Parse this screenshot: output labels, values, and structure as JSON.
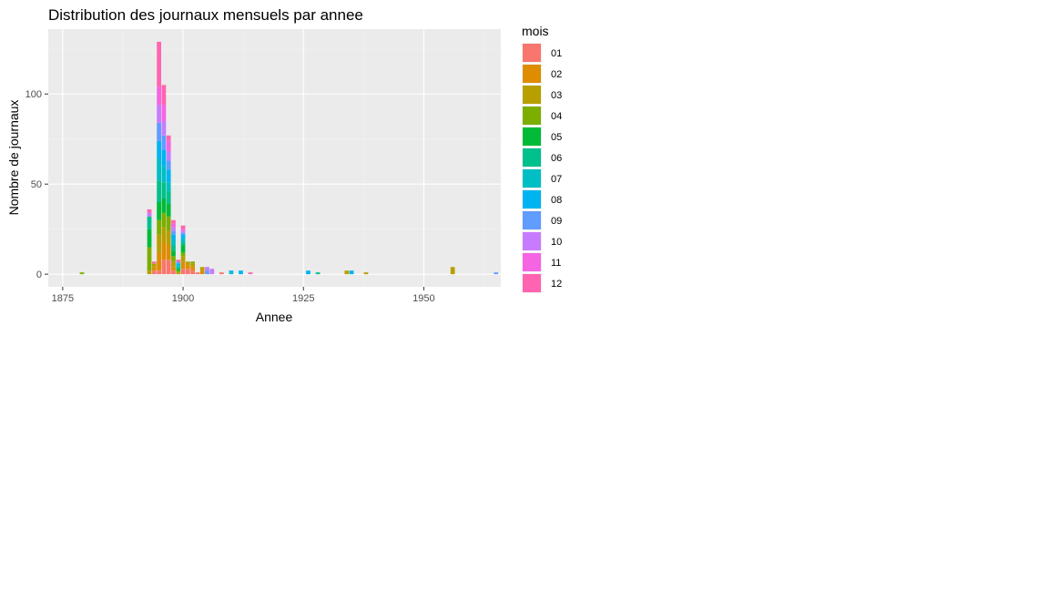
{
  "chart_data": {
    "type": "bar",
    "stacked": true,
    "title": "Distribution des journaux mensuels par annee",
    "xlabel": "Annee",
    "ylabel": "Nombre de journaux",
    "xlim": [
      1872,
      1966
    ],
    "ylim": [
      -7,
      136
    ],
    "x_ticks": [
      1875,
      1900,
      1925,
      1950
    ],
    "y_ticks": [
      0,
      50,
      100
    ],
    "grid": true,
    "legend": {
      "title": "mois",
      "position": "right",
      "entries": [
        {
          "label": "01",
          "color": "#F8766D"
        },
        {
          "label": "02",
          "color": "#DE8C00"
        },
        {
          "label": "03",
          "color": "#B79F00"
        },
        {
          "label": "04",
          "color": "#7CAE00"
        },
        {
          "label": "05",
          "color": "#00BA38"
        },
        {
          "label": "06",
          "color": "#00C08B"
        },
        {
          "label": "07",
          "color": "#00BFC4"
        },
        {
          "label": "08",
          "color": "#00B4F0"
        },
        {
          "label": "09",
          "color": "#619CFF"
        },
        {
          "label": "10",
          "color": "#C77CFF"
        },
        {
          "label": "11",
          "color": "#F564E3"
        },
        {
          "label": "12",
          "color": "#FF64B0"
        }
      ]
    },
    "series": [
      {
        "year": 1879,
        "counts": [
          0,
          0,
          0,
          1,
          0,
          0,
          0,
          0,
          0,
          0,
          0,
          0
        ]
      },
      {
        "year": 1893,
        "counts": [
          0,
          0,
          2,
          13,
          10,
          7,
          0,
          0,
          0,
          2,
          0,
          2
        ]
      },
      {
        "year": 1894,
        "counts": [
          2,
          2,
          2,
          0,
          0,
          0,
          0,
          0,
          0,
          0,
          0,
          1
        ]
      },
      {
        "year": 1895,
        "counts": [
          2,
          10,
          10,
          8,
          10,
          12,
          12,
          10,
          10,
          10,
          10,
          25
        ]
      },
      {
        "year": 1896,
        "counts": [
          8,
          10,
          8,
          8,
          8,
          9,
          9,
          9,
          8,
          8,
          9,
          11
        ]
      },
      {
        "year": 1897,
        "counts": [
          8,
          8,
          8,
          8,
          7,
          7,
          5,
          7,
          5,
          5,
          6,
          3
        ]
      },
      {
        "year": 1898,
        "counts": [
          2,
          2,
          3,
          3,
          3,
          3,
          3,
          3,
          2,
          2,
          2,
          2
        ]
      },
      {
        "year": 1899,
        "counts": [
          0,
          0,
          1,
          1,
          1,
          1,
          1,
          1,
          1,
          0,
          0,
          1
        ]
      },
      {
        "year": 1900,
        "counts": [
          3,
          4,
          3,
          2,
          4,
          2,
          2,
          2,
          1,
          1,
          1,
          2
        ]
      },
      {
        "year": 1901,
        "counts": [
          3,
          2,
          2,
          0,
          0,
          0,
          0,
          0,
          0,
          0,
          0,
          0
        ]
      },
      {
        "year": 1902,
        "counts": [
          2,
          2,
          2,
          1,
          0,
          0,
          0,
          0,
          0,
          0,
          0,
          0
        ]
      },
      {
        "year": 1903,
        "counts": [
          1,
          0,
          0,
          0,
          0,
          0,
          0,
          0,
          0,
          0,
          0,
          0
        ]
      },
      {
        "year": 1904,
        "counts": [
          0,
          2,
          2,
          0,
          0,
          0,
          0,
          0,
          0,
          0,
          0,
          0
        ]
      },
      {
        "year": 1905,
        "counts": [
          0,
          0,
          0,
          0,
          0,
          0,
          0,
          0,
          2,
          2,
          0,
          0
        ]
      },
      {
        "year": 1906,
        "counts": [
          0,
          0,
          0,
          0,
          0,
          0,
          0,
          0,
          0,
          3,
          0,
          0
        ]
      },
      {
        "year": 1908,
        "counts": [
          1,
          0,
          0,
          0,
          0,
          0,
          0,
          0,
          0,
          0,
          0,
          0
        ]
      },
      {
        "year": 1910,
        "counts": [
          0,
          0,
          0,
          0,
          0,
          0,
          1,
          1,
          0,
          0,
          0,
          0
        ]
      },
      {
        "year": 1912,
        "counts": [
          0,
          0,
          0,
          0,
          0,
          0,
          0,
          2,
          0,
          0,
          0,
          0
        ]
      },
      {
        "year": 1914,
        "counts": [
          0,
          0,
          0,
          0,
          0,
          0,
          0,
          0,
          0,
          0,
          0,
          1
        ]
      },
      {
        "year": 1926,
        "counts": [
          0,
          0,
          0,
          0,
          0,
          0,
          0,
          2,
          0,
          0,
          0,
          0
        ]
      },
      {
        "year": 1928,
        "counts": [
          0,
          0,
          0,
          0,
          0,
          1,
          0,
          0,
          0,
          0,
          0,
          0
        ]
      },
      {
        "year": 1934,
        "counts": [
          0,
          0,
          2,
          0,
          0,
          0,
          0,
          0,
          0,
          0,
          0,
          0
        ]
      },
      {
        "year": 1935,
        "counts": [
          0,
          0,
          0,
          0,
          0,
          0,
          0,
          2,
          0,
          0,
          0,
          0
        ]
      },
      {
        "year": 1938,
        "counts": [
          0,
          0,
          1,
          0,
          0,
          0,
          0,
          0,
          0,
          0,
          0,
          0
        ]
      },
      {
        "year": 1956,
        "counts": [
          0,
          0,
          4,
          0,
          0,
          0,
          0,
          0,
          0,
          0,
          0,
          0
        ]
      },
      {
        "year": 1965,
        "counts": [
          0,
          0,
          0,
          0,
          0,
          0,
          0,
          0,
          1,
          0,
          0,
          0
        ]
      }
    ]
  }
}
